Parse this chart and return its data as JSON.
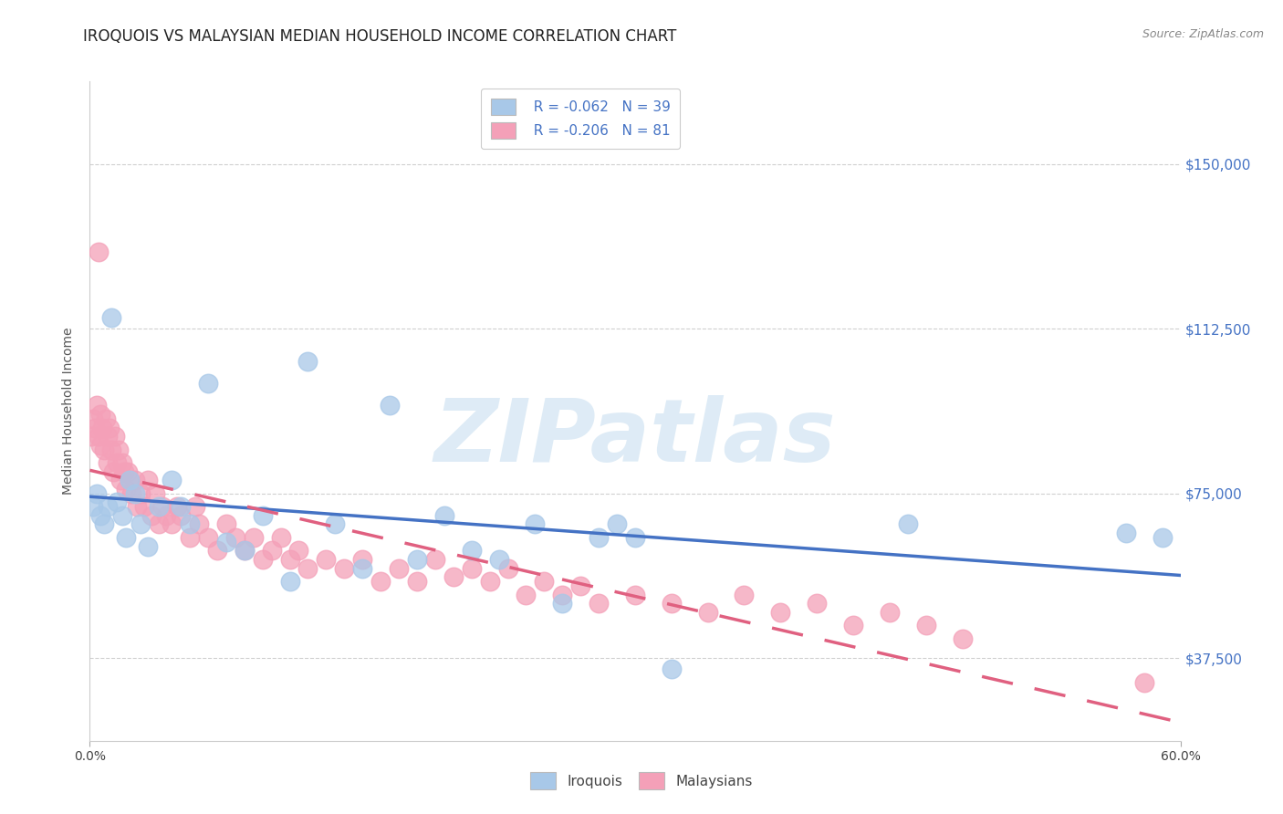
{
  "title": "IROQUOIS VS MALAYSIAN MEDIAN HOUSEHOLD INCOME CORRELATION CHART",
  "source": "Source: ZipAtlas.com",
  "ylabel": "Median Household Income",
  "xmin": 0.0,
  "xmax": 0.6,
  "ymin": 18750,
  "ymax": 168750,
  "yticks": [
    37500,
    75000,
    112500,
    150000
  ],
  "ytick_labels": [
    "$37,500",
    "$75,000",
    "$112,500",
    "$150,000"
  ],
  "background_color": "#ffffff",
  "grid_color": "#d0d0d0",
  "watermark_text": "ZIPatlas",
  "watermark_color": "#c8dff0",
  "legend_r_iroquois": "R = -0.062",
  "legend_n_iroquois": "N = 39",
  "legend_r_malaysians": "R = -0.206",
  "legend_n_malaysians": "N = 81",
  "iroquois_color": "#a8c8e8",
  "malaysians_color": "#f4a0b8",
  "iroquois_line_color": "#4472c4",
  "malaysians_line_color": "#e06080",
  "title_fontsize": 12,
  "axis_label_fontsize": 10,
  "tick_fontsize": 10,
  "legend_fontsize": 11,
  "iroquois_scatter_x": [
    0.002,
    0.004,
    0.006,
    0.008,
    0.01,
    0.012,
    0.015,
    0.018,
    0.02,
    0.022,
    0.025,
    0.028,
    0.032,
    0.038,
    0.045,
    0.05,
    0.055,
    0.065,
    0.075,
    0.085,
    0.095,
    0.11,
    0.12,
    0.135,
    0.15,
    0.165,
    0.18,
    0.195,
    0.21,
    0.225,
    0.245,
    0.26,
    0.28,
    0.29,
    0.3,
    0.32,
    0.45,
    0.57,
    0.59
  ],
  "iroquois_scatter_y": [
    72000,
    75000,
    70000,
    68000,
    72000,
    115000,
    73000,
    70000,
    65000,
    78000,
    75000,
    68000,
    63000,
    72000,
    78000,
    72000,
    68000,
    100000,
    64000,
    62000,
    70000,
    55000,
    105000,
    68000,
    58000,
    95000,
    60000,
    70000,
    62000,
    60000,
    68000,
    50000,
    65000,
    68000,
    65000,
    35000,
    68000,
    66000,
    65000
  ],
  "malaysians_scatter_x": [
    0.001,
    0.002,
    0.003,
    0.004,
    0.005,
    0.005,
    0.006,
    0.006,
    0.007,
    0.008,
    0.009,
    0.01,
    0.01,
    0.011,
    0.012,
    0.013,
    0.014,
    0.015,
    0.016,
    0.017,
    0.018,
    0.019,
    0.02,
    0.021,
    0.022,
    0.023,
    0.025,
    0.026,
    0.028,
    0.03,
    0.032,
    0.034,
    0.036,
    0.038,
    0.04,
    0.042,
    0.045,
    0.048,
    0.05,
    0.055,
    0.058,
    0.06,
    0.065,
    0.07,
    0.075,
    0.08,
    0.085,
    0.09,
    0.095,
    0.1,
    0.105,
    0.11,
    0.115,
    0.12,
    0.13,
    0.14,
    0.15,
    0.16,
    0.17,
    0.18,
    0.19,
    0.2,
    0.21,
    0.22,
    0.23,
    0.24,
    0.25,
    0.26,
    0.27,
    0.28,
    0.3,
    0.32,
    0.34,
    0.36,
    0.38,
    0.4,
    0.42,
    0.44,
    0.46,
    0.48,
    0.58
  ],
  "malaysians_scatter_y": [
    88000,
    92000,
    90000,
    95000,
    88000,
    130000,
    93000,
    86000,
    90000,
    85000,
    92000,
    88000,
    82000,
    90000,
    85000,
    80000,
    88000,
    82000,
    85000,
    78000,
    82000,
    80000,
    76000,
    80000,
    78000,
    75000,
    78000,
    72000,
    75000,
    72000,
    78000,
    70000,
    75000,
    68000,
    72000,
    70000,
    68000,
    72000,
    70000,
    65000,
    72000,
    68000,
    65000,
    62000,
    68000,
    65000,
    62000,
    65000,
    60000,
    62000,
    65000,
    60000,
    62000,
    58000,
    60000,
    58000,
    60000,
    55000,
    58000,
    55000,
    60000,
    56000,
    58000,
    55000,
    58000,
    52000,
    55000,
    52000,
    54000,
    50000,
    52000,
    50000,
    48000,
    52000,
    48000,
    50000,
    45000,
    48000,
    45000,
    42000,
    32000
  ]
}
